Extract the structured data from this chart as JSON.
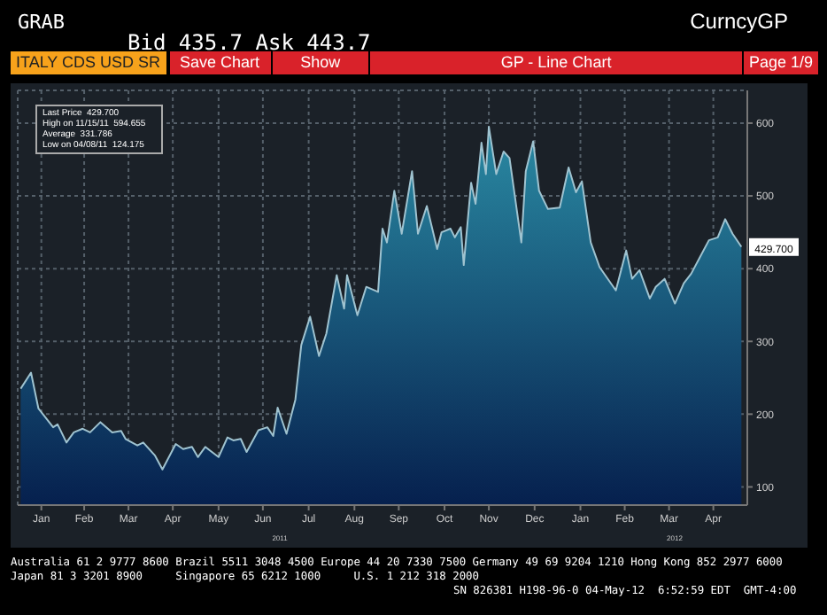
{
  "chart_data": {
    "type": "area",
    "title": "ITALY CDS USD SR",
    "annotations": [
      "GRAB",
      "CurncyGP",
      "Bid 435.7  Ask 443.7",
      "Save Chart",
      "Show",
      "GP - Line Chart",
      "Page 1/9",
      "Last Price  429.700",
      "High on 11/15/11  594.655",
      "Average  331.786",
      "Low on 04/08/11  124.175",
      "2011",
      "2012",
      {
        "text": "429.700",
        "x": "2012-05-04",
        "y": 429.7
      },
      "Australia 61 2 9777 8600 Brazil 5511 3048 4500 Europe 44 20 7330 7500 Germany 49 69 9204 1210 Hong Kong 852 2977 6000",
      "Japan 81 3 3201 8900     Singapore 65 6212 1000     U.S. 1 212 318 2000",
      "SN 826381 H198-96-0 04-May-12  6:52:59 EDT  GMT-4:00"
    ],
    "x": [
      "2011-01-02",
      "2011-01-09",
      "2011-01-14",
      "2011-01-24",
      "2011-01-27",
      "2011-02-02",
      "2011-02-07",
      "2011-02-13",
      "2011-02-18",
      "2011-02-25",
      "2011-03-05",
      "2011-03-11",
      "2011-03-14",
      "2011-03-22",
      "2011-03-26",
      "2011-04-03",
      "2011-04-08",
      "2011-04-17",
      "2011-04-22",
      "2011-04-28",
      "2011-05-02",
      "2011-05-07",
      "2011-05-16",
      "2011-05-22",
      "2011-05-26",
      "2011-05-31",
      "2011-06-04",
      "2011-06-12",
      "2011-06-18",
      "2011-06-22",
      "2011-06-25",
      "2011-07-01",
      "2011-07-07",
      "2011-07-11",
      "2011-07-17",
      "2011-07-23",
      "2011-07-28",
      "2011-08-04",
      "2011-08-09",
      "2011-08-11",
      "2011-08-18",
      "2011-08-24",
      "2011-09-01",
      "2011-09-04",
      "2011-09-07",
      "2011-09-12",
      "2011-09-17",
      "2011-09-24",
      "2011-09-28",
      "2011-10-04",
      "2011-10-11",
      "2011-10-14",
      "2011-10-20",
      "2011-10-23",
      "2011-10-27",
      "2011-10-29",
      "2011-11-03",
      "2011-11-06",
      "2011-11-10",
      "2011-11-13",
      "2011-11-15",
      "2011-11-20",
      "2011-11-25",
      "2011-11-29",
      "2011-12-07",
      "2011-12-10",
      "2011-12-15",
      "2011-12-19",
      "2011-12-25",
      "2012-01-02",
      "2012-01-08",
      "2012-01-13",
      "2012-01-17",
      "2012-01-23",
      "2012-01-29",
      "2012-02-09",
      "2012-02-16",
      "2012-02-20",
      "2012-02-25",
      "2012-03-03",
      "2012-03-07",
      "2012-03-13",
      "2012-03-20",
      "2012-03-26",
      "2012-03-31",
      "2012-04-06",
      "2012-04-12",
      "2012-04-18",
      "2012-04-23",
      "2012-04-28",
      "2012-05-04"
    ],
    "series": [
      {
        "color": "#9fc3d0",
        "values": [
          235,
          257,
          208,
          182,
          186,
          161,
          175,
          180,
          175,
          189,
          175,
          177,
          166,
          157,
          161,
          143,
          124,
          159,
          152,
          155,
          141,
          155,
          141,
          168,
          164,
          166,
          148,
          178,
          182,
          170,
          209,
          173,
          220,
          295,
          334,
          280,
          311,
          391,
          345,
          391,
          336,
          375,
          368,
          455,
          436,
          507,
          448,
          534,
          448,
          486,
          427,
          450,
          455,
          443,
          457,
          405,
          518,
          489,
          573,
          530,
          595,
          530,
          561,
          552,
          436,
          534,
          575,
          507,
          482,
          484,
          539,
          505,
          520,
          436,
          402,
          370,
          425,
          386,
          398,
          359,
          375,
          386,
          352,
          380,
          393,
          416,
          439,
          443,
          468,
          448,
          430
        ]
      }
    ],
    "xlim": [
      "2010-12-31",
      "2012-05-08"
    ],
    "xticks": [
      {
        "value": "2011-01-16",
        "label": "Jan"
      },
      {
        "value": "2011-02-14",
        "label": "Feb"
      },
      {
        "value": "2011-03-16",
        "label": "Mar"
      },
      {
        "value": "2011-04-15",
        "label": "Apr"
      },
      {
        "value": "2011-05-16",
        "label": "May"
      },
      {
        "value": "2011-06-15",
        "label": "Jun"
      },
      {
        "value": "2011-07-16",
        "label": "Jul"
      },
      {
        "value": "2011-08-16",
        "label": "Aug"
      },
      {
        "value": "2011-09-15",
        "label": "Sep"
      },
      {
        "value": "2011-10-16",
        "label": "Oct"
      },
      {
        "value": "2011-11-15",
        "label": "Nov"
      },
      {
        "value": "2011-12-16",
        "label": "Dec"
      },
      {
        "value": "2012-01-16",
        "label": "Jan"
      },
      {
        "value": "2012-02-15",
        "label": "Feb"
      },
      {
        "value": "2012-03-16",
        "label": "Mar"
      },
      {
        "value": "2012-04-15",
        "label": "Apr"
      }
    ],
    "ylim": [
      75,
      645
    ],
    "yticks": [
      100,
      200,
      300,
      400,
      500,
      600
    ],
    "grid": true
  }
}
